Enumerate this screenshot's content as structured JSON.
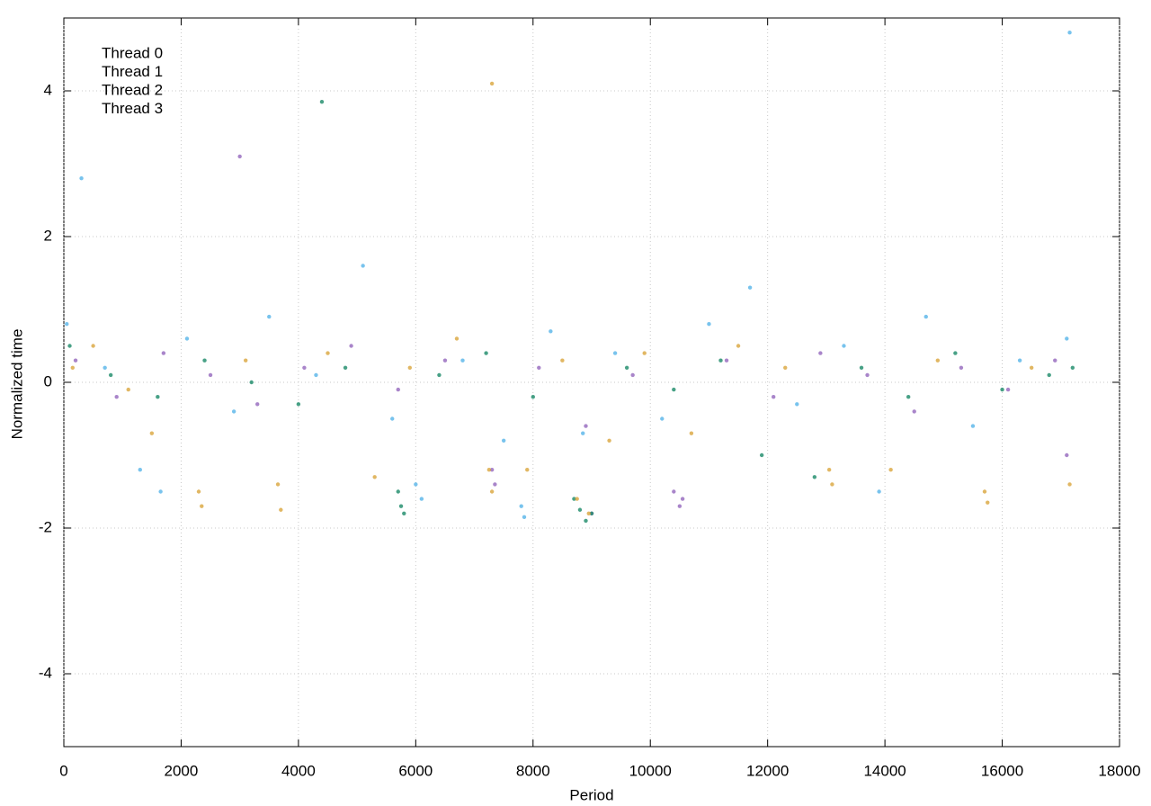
{
  "chart_data": {
    "type": "scatter",
    "x_label": "Period",
    "y_label": "Normalized time",
    "xlim": [
      0,
      18000
    ],
    "xticks": [
      0,
      2000,
      4000,
      6000,
      8000,
      10000,
      12000,
      14000,
      16000,
      18000
    ],
    "ylim": [
      -5,
      5
    ],
    "yticks": [
      -4,
      -2,
      0,
      2,
      4
    ],
    "grid": true,
    "legend": "top-left",
    "series": [
      {
        "name": "Thread 0",
        "color": "#9467bd",
        "x": [
          200,
          900,
          1700,
          2500,
          3300,
          4100,
          4900,
          5700,
          6500,
          7300,
          7350,
          8100,
          8900,
          9700,
          10400,
          10500,
          10550,
          11300,
          12100,
          12900,
          13700,
          14500,
          15300,
          16100,
          16900,
          17100,
          3000,
          9000
        ],
        "values": [
          0.3,
          -0.2,
          0.4,
          0.1,
          -0.3,
          0.2,
          0.5,
          -0.1,
          0.3,
          -1.2,
          -1.4,
          0.2,
          -0.6,
          0.1,
          -1.5,
          -1.7,
          -1.6,
          0.3,
          -0.2,
          0.4,
          0.1,
          -0.4,
          0.2,
          -0.1,
          0.3,
          -1.0,
          3.1,
          -1.8
        ]
      },
      {
        "name": "Thread 1",
        "color": "#1a8a68",
        "x": [
          100,
          800,
          1600,
          2400,
          3200,
          4000,
          4800,
          5700,
          5750,
          5800,
          6400,
          7200,
          8000,
          8700,
          8800,
          8900,
          9000,
          9600,
          10400,
          11200,
          11900,
          12800,
          13600,
          14400,
          15200,
          16000,
          16800,
          17200,
          4400
        ],
        "values": [
          0.5,
          0.1,
          -0.2,
          0.3,
          0.0,
          -0.3,
          0.2,
          -1.5,
          -1.7,
          -1.8,
          0.1,
          0.4,
          -0.2,
          -1.6,
          -1.75,
          -1.9,
          -1.8,
          0.2,
          -0.1,
          0.3,
          -1.0,
          -1.3,
          0.2,
          -0.2,
          0.4,
          -0.1,
          0.1,
          0.2,
          3.85
        ]
      },
      {
        "name": "Thread 2",
        "color": "#56b4e9",
        "x": [
          50,
          300,
          700,
          1300,
          1650,
          2100,
          2900,
          3500,
          4300,
          5100,
          5600,
          6000,
          6100,
          6800,
          7500,
          7800,
          7850,
          8300,
          8850,
          9400,
          10200,
          11000,
          11700,
          12500,
          13300,
          13900,
          14700,
          15500,
          16300,
          17100,
          17150
        ],
        "values": [
          0.8,
          2.8,
          0.2,
          -1.2,
          -1.5,
          0.6,
          -0.4,
          0.9,
          0.1,
          1.6,
          -0.5,
          -1.4,
          -1.6,
          0.3,
          -0.8,
          -1.7,
          -1.85,
          0.7,
          -0.7,
          0.4,
          -0.5,
          0.8,
          1.3,
          -0.3,
          0.5,
          -1.5,
          0.9,
          -0.6,
          0.3,
          0.6,
          4.8
        ]
      },
      {
        "name": "Thread 3",
        "color": "#d9a53c",
        "x": [
          150,
          500,
          1100,
          1500,
          2300,
          2350,
          3100,
          3650,
          3700,
          4500,
          5300,
          5900,
          6700,
          7250,
          7300,
          7900,
          8500,
          8750,
          8950,
          9300,
          9900,
          10700,
          11500,
          12300,
          13050,
          13100,
          14100,
          14900,
          15700,
          15750,
          16500,
          17150,
          7300
        ],
        "values": [
          0.2,
          0.5,
          -0.1,
          -0.7,
          -1.5,
          -1.7,
          0.3,
          -1.4,
          -1.75,
          0.4,
          -1.3,
          0.2,
          0.6,
          -1.2,
          -1.5,
          -1.2,
          0.3,
          -1.6,
          -1.8,
          -0.8,
          0.4,
          -0.7,
          0.5,
          0.2,
          -1.2,
          -1.4,
          -1.2,
          0.3,
          -1.5,
          -1.65,
          0.2,
          -1.4,
          4.1
        ]
      }
    ]
  }
}
